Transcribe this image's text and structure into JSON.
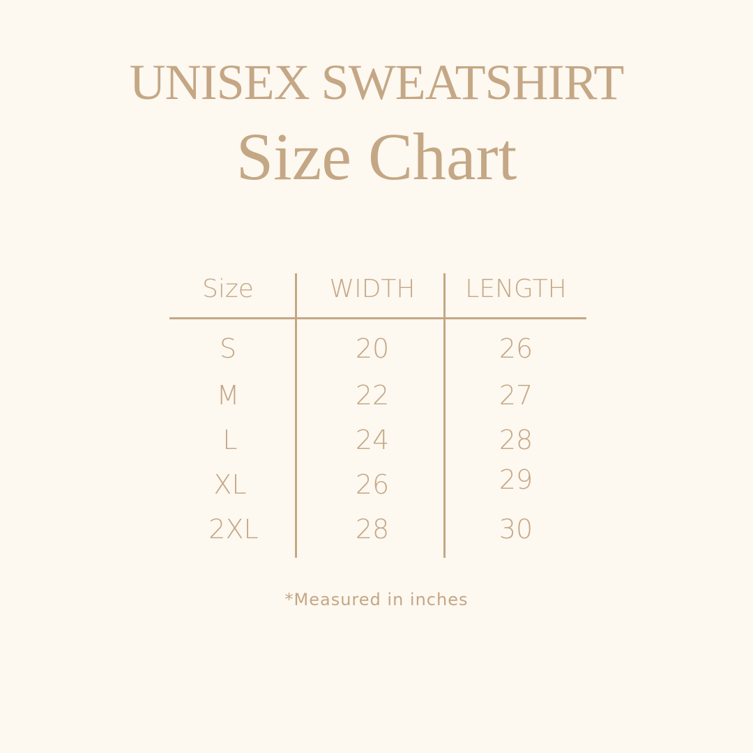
{
  "header": {
    "title": "UNISEX SWEATSHIRT",
    "subtitle": "Size Chart"
  },
  "table": {
    "columns": [
      "Size",
      "WIDTH",
      "LENGTH"
    ],
    "rows": [
      [
        "S",
        "20",
        "26"
      ],
      [
        "M",
        "22",
        "27"
      ],
      [
        "L",
        "24",
        "28"
      ],
      [
        "XL",
        "26",
        "29"
      ],
      [
        "2XL",
        "28",
        "30"
      ]
    ]
  },
  "footnote": "*Measured in inches",
  "colors": {
    "background": "#fdf8f0",
    "text": "#c4a785"
  }
}
